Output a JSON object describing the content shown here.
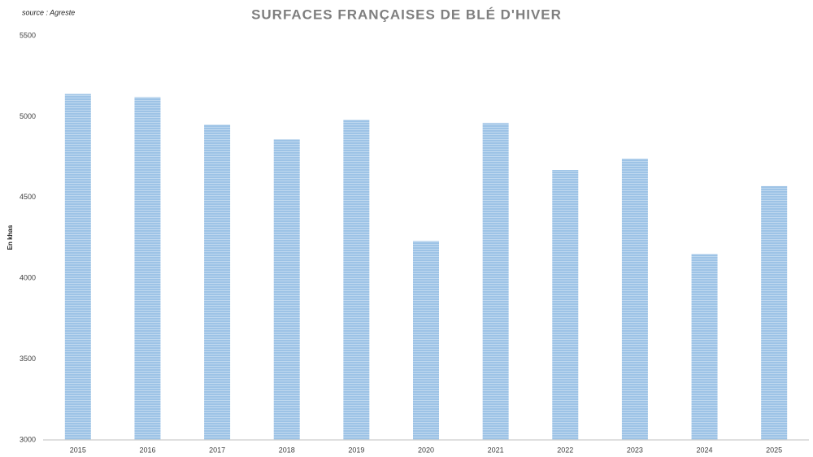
{
  "chart_data": {
    "type": "bar",
    "title": "SURFACES FRANÇAISES DE BLÉ D'HIVER",
    "source": "source : Agreste",
    "y_label": "En khas",
    "categories": [
      "2015",
      "2016",
      "2017",
      "2018",
      "2019",
      "2020",
      "2021",
      "2022",
      "2023",
      "2024",
      "2025"
    ],
    "values": [
      5140,
      5120,
      4950,
      4860,
      4980,
      4230,
      4960,
      4670,
      4740,
      4150,
      4570
    ],
    "color": "#9dc3e6",
    "ylim": [
      3000,
      5500
    ],
    "yticks": [
      3000,
      3500,
      4000,
      4500,
      5000,
      5500
    ],
    "grid": false
  }
}
